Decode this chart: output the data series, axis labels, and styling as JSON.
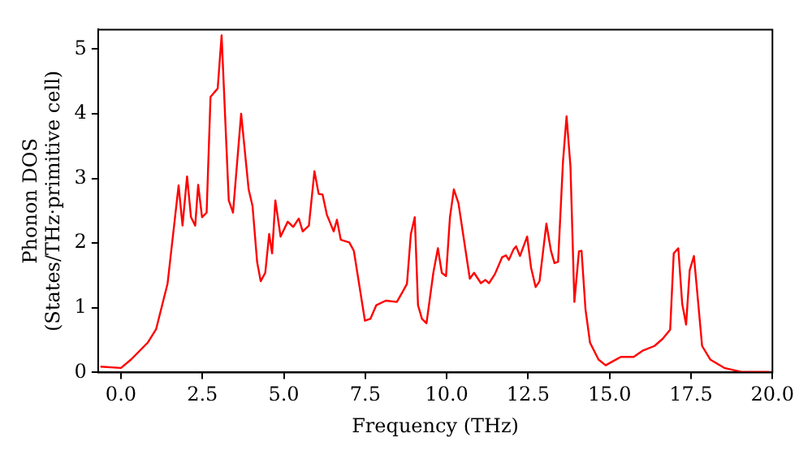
{
  "chart_data": {
    "type": "line",
    "xlabel": "Frequency (THz)",
    "ylabel": "Phonon DOS\n(States/THz·primitive cell)",
    "xlim": [
      -0.7,
      20
    ],
    "ylim": [
      0,
      5.3
    ],
    "xticks": [
      {
        "value": 0,
        "label": "0.0"
      },
      {
        "value": 2.5,
        "label": "2.5"
      },
      {
        "value": 5,
        "label": "5.0"
      },
      {
        "value": 7.5,
        "label": "7.5"
      },
      {
        "value": 10,
        "label": "10.0"
      },
      {
        "value": 12.5,
        "label": "12.5"
      },
      {
        "value": 15,
        "label": "15.0"
      },
      {
        "value": 17.5,
        "label": "17.5"
      },
      {
        "value": 20,
        "label": "20.0"
      }
    ],
    "yticks": [
      0,
      1,
      2,
      3,
      4,
      5
    ],
    "grid": false,
    "legend": false,
    "marker": "none",
    "line_style": "solid",
    "series": [
      {
        "color": "#ff0000",
        "x": [
          -0.63,
          0,
          0.31,
          0.82,
          1.08,
          1.43,
          1.77,
          1.89,
          2.03,
          2.15,
          2.28,
          2.37,
          2.49,
          2.63,
          2.75,
          2.97,
          3.09,
          3.31,
          3.44,
          3.69,
          3.92,
          4.04,
          4.18,
          4.29,
          4.43,
          4.55,
          4.64,
          4.74,
          4.9,
          5.12,
          5.29,
          5.46,
          5.58,
          5.77,
          5.94,
          6.07,
          6.19,
          6.32,
          6.53,
          6.63,
          6.75,
          7.01,
          7.15,
          7.49,
          7.66,
          7.84,
          8.13,
          8.47,
          8.64,
          8.78,
          8.9,
          9.02,
          9.12,
          9.24,
          9.38,
          9.59,
          9.73,
          9.85,
          9.98,
          10.1,
          10.22,
          10.36,
          10.71,
          10.84,
          11.05,
          11.19,
          11.3,
          11.48,
          11.7,
          11.82,
          11.91,
          12.05,
          12.13,
          12.25,
          12.47,
          12.59,
          12.73,
          12.85,
          13.06,
          13.2,
          13.31,
          13.42,
          13.57,
          13.68,
          13.8,
          13.92,
          14.06,
          14.14,
          14.26,
          14.4,
          14.66,
          14.88,
          15.09,
          15.35,
          15.74,
          16.03,
          16.38,
          16.63,
          16.86,
          16.97,
          17.11,
          17.23,
          17.35,
          17.46,
          17.59,
          17.7,
          17.84,
          18.09,
          18.52,
          19.04,
          19.9
        ],
        "values": [
          0.09,
          0.07,
          0.2,
          0.46,
          0.67,
          1.37,
          2.89,
          2.27,
          3.03,
          2.4,
          2.27,
          2.9,
          2.4,
          2.47,
          4.26,
          4.39,
          5.21,
          2.66,
          2.47,
          4.0,
          2.83,
          2.57,
          1.71,
          1.41,
          1.54,
          2.14,
          1.84,
          2.66,
          2.1,
          2.33,
          2.25,
          2.38,
          2.18,
          2.27,
          3.11,
          2.76,
          2.75,
          2.44,
          2.18,
          2.36,
          2.05,
          2.01,
          1.88,
          0.8,
          0.83,
          1.04,
          1.11,
          1.09,
          1.24,
          1.37,
          2.14,
          2.4,
          1.04,
          0.83,
          0.76,
          1.54,
          1.92,
          1.54,
          1.49,
          2.4,
          2.83,
          2.62,
          1.45,
          1.54,
          1.38,
          1.43,
          1.38,
          1.52,
          1.78,
          1.81,
          1.74,
          1.9,
          1.95,
          1.8,
          2.1,
          1.62,
          1.32,
          1.41,
          2.3,
          1.88,
          1.69,
          1.71,
          3.26,
          3.96,
          3.18,
          1.09,
          1.87,
          1.88,
          0.98,
          0.46,
          0.2,
          0.11,
          0.17,
          0.24,
          0.24,
          0.34,
          0.41,
          0.52,
          0.66,
          1.84,
          1.92,
          1.06,
          0.74,
          1.58,
          1.8,
          1.19,
          0.41,
          0.2,
          0.07,
          0.01,
          0.01
        ]
      }
    ]
  }
}
